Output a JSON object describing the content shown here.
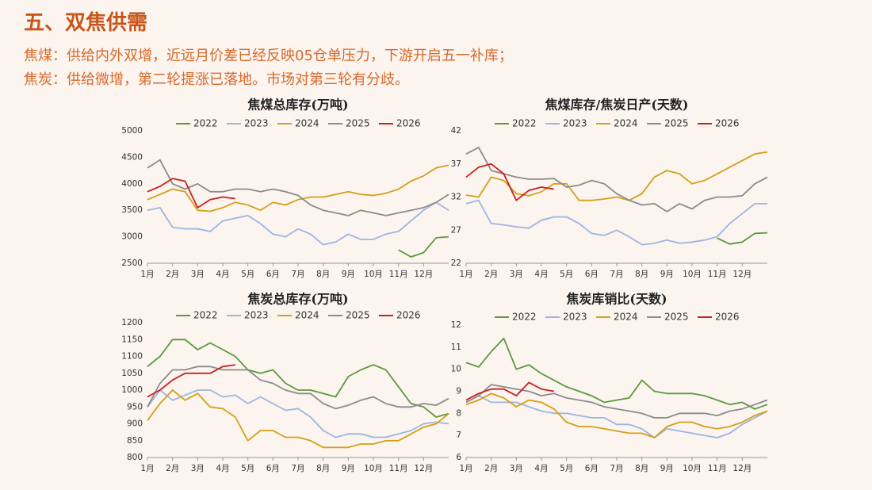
{
  "header": {
    "title": "五、双焦供需",
    "lines": [
      "焦煤：供给内外双增，近远月价差已经反映05仓单压力，下游开启五一补库；",
      "焦炭：供给微增，第二轮提涨已落地。市场对第三轮有分歧。"
    ]
  },
  "chart_data": [
    {
      "type": "line",
      "title": "焦煤总库存(万吨)",
      "legend": "top",
      "grid": false,
      "x": [
        1,
        1.5,
        2,
        2.5,
        3,
        3.5,
        4,
        4.5,
        5,
        5.5,
        6,
        6.5,
        7,
        7.5,
        8,
        8.5,
        9,
        9.5,
        10,
        10.5,
        11,
        11.5,
        12,
        12.5,
        13
      ],
      "xlim": [
        1,
        13
      ],
      "xticks": [
        {
          "value": 1,
          "label": "1月"
        },
        {
          "value": 2,
          "label": "2月"
        },
        {
          "value": 3,
          "label": "3月"
        },
        {
          "value": 4,
          "label": "4月"
        },
        {
          "value": 5,
          "label": "5月"
        },
        {
          "value": 6,
          "label": "6月"
        },
        {
          "value": 7,
          "label": "7月"
        },
        {
          "value": 8,
          "label": "8月"
        },
        {
          "value": 9,
          "label": "9月"
        },
        {
          "value": 10,
          "label": "10月"
        },
        {
          "value": 11,
          "label": "11月"
        },
        {
          "value": 12,
          "label": "12月"
        }
      ],
      "ylim": [
        2500,
        5000
      ],
      "yticks": [
        2500,
        3000,
        3500,
        4000,
        4500,
        5000
      ],
      "series": [
        {
          "name": "2022",
          "color": "#5b9a3c",
          "values": [
            null,
            null,
            null,
            null,
            null,
            null,
            null,
            null,
            null,
            null,
            null,
            null,
            null,
            null,
            null,
            null,
            null,
            null,
            null,
            null,
            2750,
            2620,
            2700,
            2980,
            3000
          ]
        },
        {
          "name": "2023",
          "color": "#9db5e3",
          "values": [
            3500,
            3550,
            3180,
            3150,
            3150,
            3100,
            3300,
            3350,
            3400,
            3250,
            3050,
            3000,
            3150,
            3050,
            2850,
            2900,
            3050,
            2950,
            2950,
            3050,
            3100,
            3300,
            3500,
            3650,
            3500
          ]
        },
        {
          "name": "2024",
          "color": "#d4a017",
          "values": [
            3700,
            3800,
            3900,
            3850,
            3500,
            3480,
            3550,
            3650,
            3600,
            3500,
            3650,
            3600,
            3700,
            3750,
            3750,
            3800,
            3850,
            3800,
            3780,
            3820,
            3900,
            4050,
            4150,
            4300,
            4350
          ]
        },
        {
          "name": "2025",
          "color": "#8c8c8c",
          "values": [
            4300,
            4450,
            4000,
            3900,
            4000,
            3850,
            3850,
            3900,
            3900,
            3850,
            3900,
            3850,
            3780,
            3600,
            3500,
            3450,
            3400,
            3500,
            3450,
            3400,
            3450,
            3500,
            3550,
            3650,
            3800
          ]
        },
        {
          "name": "2026",
          "color": "#c9201f",
          "values": [
            3850,
            3950,
            4100,
            4050,
            3550,
            3700,
            3750,
            3720,
            null,
            null,
            null,
            null,
            null,
            null,
            null,
            null,
            null,
            null,
            null,
            null,
            null,
            null,
            null,
            null,
            null
          ]
        }
      ]
    },
    {
      "type": "line",
      "title": "焦煤库存/焦炭日产(天数)",
      "legend": "top",
      "grid": false,
      "x": [
        1,
        1.5,
        2,
        2.5,
        3,
        3.5,
        4,
        4.5,
        5,
        5.5,
        6,
        6.5,
        7,
        7.5,
        8,
        8.5,
        9,
        9.5,
        10,
        10.5,
        11,
        11.5,
        12,
        12.5,
        13
      ],
      "xlim": [
        1,
        13
      ],
      "xticks": [
        {
          "value": 1,
          "label": "1月"
        },
        {
          "value": 2,
          "label": "2月"
        },
        {
          "value": 3,
          "label": "3月"
        },
        {
          "value": 4,
          "label": "4月"
        },
        {
          "value": 5,
          "label": "5月"
        },
        {
          "value": 6,
          "label": "6月"
        },
        {
          "value": 7,
          "label": "7月"
        },
        {
          "value": 8,
          "label": "8月"
        },
        {
          "value": 9,
          "label": "9月"
        },
        {
          "value": 10,
          "label": "10月"
        },
        {
          "value": 11,
          "label": "11月"
        },
        {
          "value": 12,
          "label": "12月"
        }
      ],
      "ylim": [
        22,
        42
      ],
      "yticks": [
        22,
        27,
        32,
        37,
        42
      ],
      "series": [
        {
          "name": "2022",
          "color": "#5b9a3c",
          "values": [
            null,
            null,
            null,
            null,
            null,
            null,
            null,
            null,
            null,
            null,
            null,
            null,
            null,
            null,
            null,
            null,
            null,
            null,
            null,
            null,
            25.8,
            24.9,
            25.2,
            26.5,
            26.6
          ]
        },
        {
          "name": "2023",
          "color": "#9db5e3",
          "values": [
            31,
            31.5,
            28,
            27.8,
            27.5,
            27.3,
            28.5,
            29,
            29,
            28,
            26.5,
            26.2,
            27,
            26,
            24.8,
            25,
            25.5,
            25,
            25.2,
            25.5,
            26,
            28,
            29.5,
            31,
            31
          ]
        },
        {
          "name": "2024",
          "color": "#d4a017",
          "values": [
            32.3,
            32,
            35,
            34.5,
            32.5,
            32.2,
            32.8,
            34,
            34,
            31.5,
            31.5,
            31.7,
            32,
            31.5,
            32.5,
            35,
            36,
            35.5,
            34,
            34.5,
            35.5,
            36.5,
            37.5,
            38.5,
            38.8
          ]
        },
        {
          "name": "2025",
          "color": "#8c8c8c",
          "values": [
            38.5,
            39.5,
            36,
            35.5,
            35,
            34.7,
            34.7,
            34.8,
            33.5,
            33.8,
            34.5,
            34,
            32.5,
            31.5,
            30.8,
            31,
            29.8,
            31,
            30.2,
            31.5,
            32,
            32,
            32.2,
            34,
            35
          ]
        },
        {
          "name": "2026",
          "color": "#c9201f",
          "values": [
            35,
            36.5,
            37,
            35.5,
            31.5,
            33,
            33.5,
            33.2,
            null,
            null,
            null,
            null,
            null,
            null,
            null,
            null,
            null,
            null,
            null,
            null,
            null,
            null,
            null,
            null,
            null
          ]
        }
      ]
    },
    {
      "type": "line",
      "title": "焦炭总库存(万吨)",
      "legend": "top",
      "grid": false,
      "x": [
        1,
        1.5,
        2,
        2.5,
        3,
        3.5,
        4,
        4.5,
        5,
        5.5,
        6,
        6.5,
        7,
        7.5,
        8,
        8.5,
        9,
        9.5,
        10,
        10.5,
        11,
        11.5,
        12,
        12.5,
        13
      ],
      "xlim": [
        1,
        13
      ],
      "xticks": [
        {
          "value": 1,
          "label": "1月"
        },
        {
          "value": 2,
          "label": "2月"
        },
        {
          "value": 3,
          "label": "3月"
        },
        {
          "value": 4,
          "label": "4月"
        },
        {
          "value": 5,
          "label": "5月"
        },
        {
          "value": 6,
          "label": "6月"
        },
        {
          "value": 7,
          "label": "7月"
        },
        {
          "value": 8,
          "label": "8月"
        },
        {
          "value": 9,
          "label": "9月"
        },
        {
          "value": 10,
          "label": "10月"
        },
        {
          "value": 11,
          "label": "11月"
        },
        {
          "value": 12,
          "label": "12月"
        }
      ],
      "ylim": [
        800,
        1200
      ],
      "yticks": [
        800,
        850,
        900,
        950,
        1000,
        1050,
        1100,
        1150,
        1200
      ],
      "series": [
        {
          "name": "2022",
          "color": "#5b9a3c",
          "values": [
            1070,
            1100,
            1150,
            1150,
            1120,
            1140,
            1120,
            1100,
            1060,
            1050,
            1060,
            1020,
            1000,
            1000,
            990,
            980,
            1040,
            1060,
            1075,
            1060,
            1010,
            960,
            950,
            920,
            930
          ]
        },
        {
          "name": "2023",
          "color": "#9db5e3",
          "values": [
            950,
            1000,
            970,
            985,
            1000,
            1000,
            980,
            985,
            960,
            980,
            960,
            940,
            945,
            920,
            880,
            860,
            870,
            870,
            860,
            860,
            870,
            880,
            900,
            905,
            900
          ]
        },
        {
          "name": "2024",
          "color": "#d4a017",
          "values": [
            910,
            960,
            1000,
            970,
            990,
            950,
            945,
            920,
            850,
            880,
            880,
            860,
            860,
            850,
            830,
            830,
            830,
            840,
            840,
            850,
            850,
            870,
            890,
            900,
            930
          ]
        },
        {
          "name": "2025",
          "color": "#8c8c8c",
          "values": [
            950,
            1020,
            1060,
            1060,
            1070,
            1070,
            1060,
            1060,
            1060,
            1030,
            1020,
            1000,
            990,
            990,
            960,
            945,
            955,
            970,
            980,
            960,
            950,
            950,
            960,
            955,
            975
          ]
        },
        {
          "name": "2026",
          "color": "#c9201f",
          "values": [
            980,
            1000,
            1030,
            1050,
            1050,
            1050,
            1070,
            1075,
            null,
            null,
            null,
            null,
            null,
            null,
            null,
            null,
            null,
            null,
            null,
            null,
            null,
            null,
            null,
            null,
            null
          ]
        }
      ]
    },
    {
      "type": "line",
      "title": "焦炭库销比(天数)",
      "legend": "top",
      "grid": false,
      "x": [
        1,
        1.5,
        2,
        2.5,
        3,
        3.5,
        4,
        4.5,
        5,
        5.5,
        6,
        6.5,
        7,
        7.5,
        8,
        8.5,
        9,
        9.5,
        10,
        10.5,
        11,
        11.5,
        12,
        12.5,
        13
      ],
      "xlim": [
        1,
        13
      ],
      "xticks": [
        {
          "value": 1,
          "label": "1月"
        },
        {
          "value": 2,
          "label": "2月"
        },
        {
          "value": 3,
          "label": "3月"
        },
        {
          "value": 4,
          "label": "4月"
        },
        {
          "value": 5,
          "label": "5月"
        },
        {
          "value": 6,
          "label": "6月"
        },
        {
          "value": 7,
          "label": "7月"
        },
        {
          "value": 8,
          "label": "8月"
        },
        {
          "value": 9,
          "label": "9月"
        },
        {
          "value": 10,
          "label": "10月"
        },
        {
          "value": 11,
          "label": "11月"
        },
        {
          "value": 12,
          "label": "12月"
        }
      ],
      "ylim": [
        6,
        12
      ],
      "yticks": [
        6,
        7,
        8,
        9,
        10,
        11,
        12
      ],
      "series": [
        {
          "name": "2022",
          "color": "#5b9a3c",
          "values": [
            10.3,
            10.1,
            10.8,
            11.4,
            10,
            10.2,
            9.8,
            9.5,
            9.2,
            9,
            8.8,
            8.5,
            8.6,
            8.7,
            9.5,
            9,
            8.9,
            8.9,
            8.9,
            8.8,
            8.6,
            8.4,
            8.5,
            8.2,
            8.4
          ]
        },
        {
          "name": "2023",
          "color": "#9db5e3",
          "values": [
            8.5,
            8.8,
            8.5,
            8.5,
            8.5,
            8.3,
            8.1,
            8,
            8,
            7.9,
            7.8,
            7.8,
            7.5,
            7.5,
            7.3,
            6.9,
            7.3,
            7.2,
            7.1,
            7,
            6.9,
            7.1,
            7.5,
            7.8,
            8.1
          ]
        },
        {
          "name": "2024",
          "color": "#d4a017",
          "values": [
            8.4,
            8.6,
            8.9,
            8.7,
            8.3,
            8.6,
            8.5,
            8.2,
            7.6,
            7.4,
            7.4,
            7.3,
            7.2,
            7.1,
            7.1,
            6.9,
            7.4,
            7.6,
            7.6,
            7.4,
            7.3,
            7.4,
            7.6,
            7.9,
            8.1
          ]
        },
        {
          "name": "2025",
          "color": "#8c8c8c",
          "values": [
            8.5,
            8.8,
            9.3,
            9.2,
            9.1,
            9,
            8.8,
            8.9,
            8.7,
            8.6,
            8.5,
            8.3,
            8.2,
            8.1,
            8,
            7.8,
            7.8,
            8,
            8,
            8,
            7.9,
            8.1,
            8.2,
            8.4,
            8.6
          ]
        },
        {
          "name": "2026",
          "color": "#c9201f",
          "values": [
            8.6,
            8.9,
            9.1,
            9.1,
            8.8,
            9.4,
            9.1,
            9,
            null,
            null,
            null,
            null,
            null,
            null,
            null,
            null,
            null,
            null,
            null,
            null,
            null,
            null,
            null,
            null,
            null
          ]
        }
      ]
    }
  ]
}
